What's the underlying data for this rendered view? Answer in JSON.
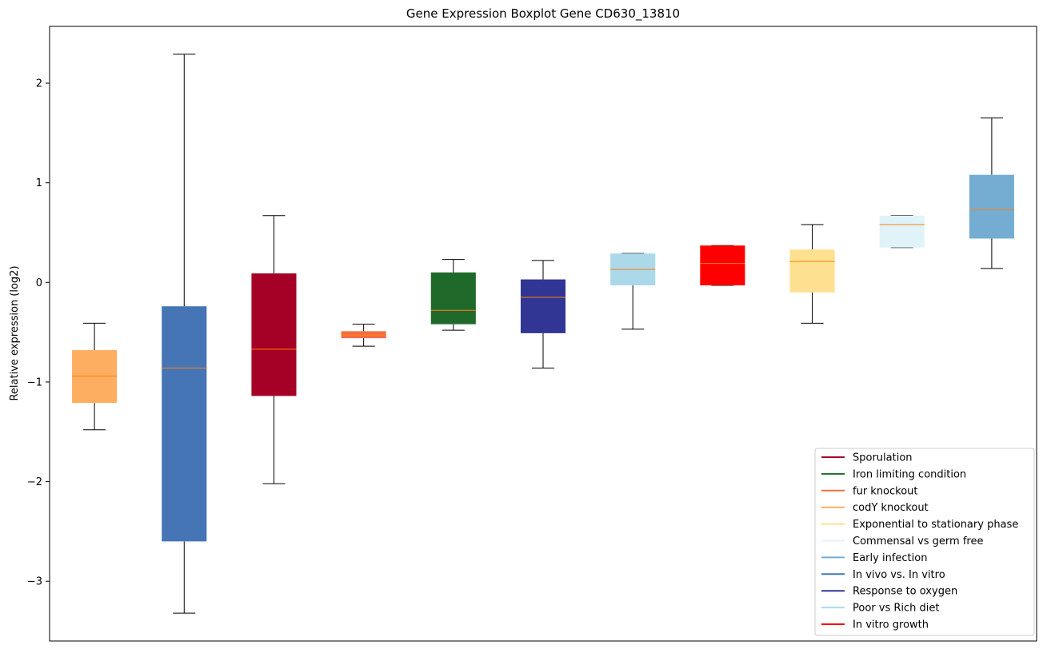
{
  "chart_data": {
    "type": "boxplot",
    "title": "Gene Expression Boxplot Gene CD630_13810",
    "ylabel": "Relative expression (log2)",
    "xlabel": "",
    "ylim": [
      -3.6,
      2.57
    ],
    "yticks": [
      -3,
      -2,
      -1,
      0,
      1,
      2
    ],
    "yticklabels": [
      "−3",
      "−2",
      "−1",
      "0",
      "1",
      "2"
    ],
    "grid": false,
    "legend_position": "lower right",
    "median_color": "#ff7f0e",
    "boxes": [
      {
        "category": "codY knockout",
        "color": "#fdae61",
        "whisker_low": -1.48,
        "q1": -1.21,
        "median": -0.94,
        "q3": -0.68,
        "whisker_high": -0.41
      },
      {
        "category": "In vivo vs. In vitro",
        "color": "#4575b4",
        "whisker_low": -3.32,
        "q1": -2.6,
        "median": -0.86,
        "q3": -0.24,
        "whisker_high": 2.29
      },
      {
        "category": "Sporulation",
        "color": "#a50026",
        "whisker_low": -2.02,
        "q1": -1.14,
        "median": -0.67,
        "q3": 0.09,
        "whisker_high": 0.67
      },
      {
        "category": "fur knockout",
        "color": "#f46d43",
        "whisker_low": -0.64,
        "q1": -0.56,
        "median": -0.53,
        "q3": -0.49,
        "whisker_high": -0.42
      },
      {
        "category": "Iron limiting condition",
        "color": "#1f6a2b",
        "whisker_low": -0.48,
        "q1": -0.42,
        "median": -0.28,
        "q3": 0.1,
        "whisker_high": 0.23
      },
      {
        "category": "Response to oxygen",
        "color": "#313695",
        "whisker_low": -0.86,
        "q1": -0.51,
        "median": -0.15,
        "q3": 0.03,
        "whisker_high": 0.22
      },
      {
        "category": "Poor vs Rich diet",
        "color": "#abd9e9",
        "whisker_low": -0.47,
        "q1": -0.03,
        "median": 0.13,
        "q3": 0.29,
        "whisker_high": 0.29
      },
      {
        "category": "In vitro growth",
        "color": "#ff0000",
        "whisker_low": -0.03,
        "q1": -0.03,
        "median": 0.19,
        "q3": 0.37,
        "whisker_high": 0.37
      },
      {
        "category": "Exponential to stationary phase",
        "color": "#fee090",
        "whisker_low": -0.41,
        "q1": -0.1,
        "median": 0.21,
        "q3": 0.33,
        "whisker_high": 0.58
      },
      {
        "category": "Commensal vs germ free",
        "color": "#e0f3f8",
        "whisker_low": 0.35,
        "q1": 0.35,
        "median": 0.58,
        "q3": 0.67,
        "whisker_high": 0.67
      },
      {
        "category": "Early infection",
        "color": "#74add1",
        "whisker_low": 0.14,
        "q1": 0.44,
        "median": 0.73,
        "q3": 1.08,
        "whisker_high": 1.65
      }
    ],
    "legend": [
      {
        "label": "Sporulation",
        "color": "#a50026"
      },
      {
        "label": "Iron limiting condition",
        "color": "#1f6a2b"
      },
      {
        "label": "fur knockout",
        "color": "#f46d43"
      },
      {
        "label": "codY knockout",
        "color": "#fdae61"
      },
      {
        "label": "Exponential to stationary phase",
        "color": "#fee090"
      },
      {
        "label": "Commensal vs germ free",
        "color": "#e0f3f8"
      },
      {
        "label": "Early infection",
        "color": "#74add1"
      },
      {
        "label": "In vivo vs. In vitro",
        "color": "#4575b4"
      },
      {
        "label": "Response to oxygen",
        "color": "#313695"
      },
      {
        "label": "Poor vs Rich diet",
        "color": "#abd9e9"
      },
      {
        "label": "In vitro growth",
        "color": "#ff0000"
      }
    ]
  }
}
